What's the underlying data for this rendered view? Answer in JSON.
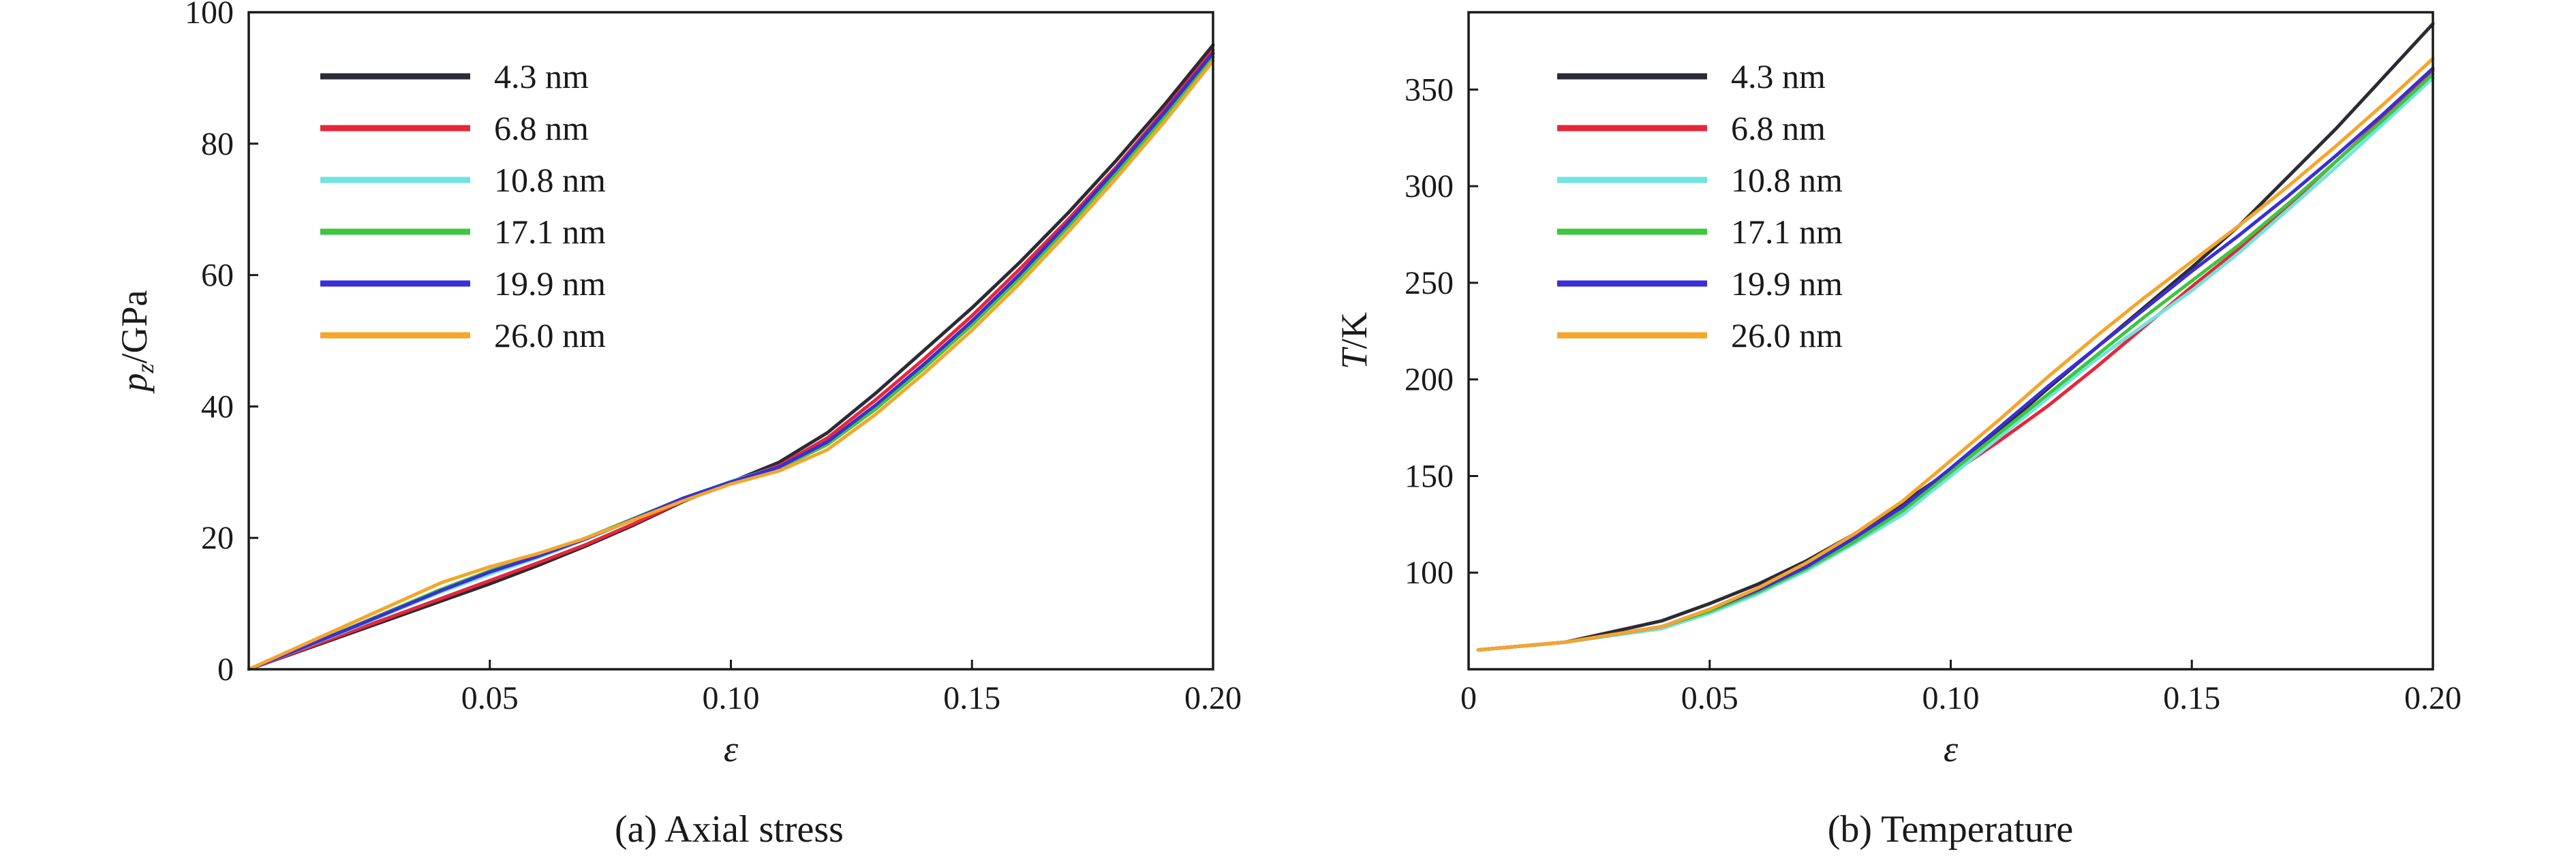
{
  "chart_data": [
    {
      "type": "line",
      "caption": "(a) Axial stress",
      "xlabel": "ε",
      "ylabel_main": "p",
      "ylabel_sub": "z",
      "ylabel_tail": "/GPa",
      "xlim": [
        0,
        0.2
      ],
      "ylim": [
        0,
        100
      ],
      "x_ticks": [
        0.05,
        0.1,
        0.15,
        0.2
      ],
      "x_tick_labels": [
        "0.05",
        "0.10",
        "0.15",
        "0.20"
      ],
      "y_ticks": [
        0,
        20,
        40,
        60,
        80,
        100
      ],
      "y_tick_labels": [
        "0",
        "20",
        "40",
        "60",
        "80",
        "100"
      ],
      "legend_position": "top-left",
      "series": [
        {
          "name": "4.3 nm",
          "color": "#2b2b35",
          "x": [
            0,
            0.02,
            0.04,
            0.05,
            0.06,
            0.07,
            0.08,
            0.09,
            0.1,
            0.11,
            0.12,
            0.13,
            0.14,
            0.15,
            0.16,
            0.17,
            0.18,
            0.19,
            0.2
          ],
          "y": [
            0,
            5.2,
            10.4,
            13.0,
            15.8,
            18.8,
            22.0,
            25.5,
            28.5,
            31.5,
            36.0,
            42.0,
            48.5,
            55.0,
            62.0,
            69.5,
            77.5,
            86.0,
            95.0
          ]
        },
        {
          "name": "6.8 nm",
          "color": "#e8263a",
          "x": [
            0,
            0.02,
            0.04,
            0.05,
            0.06,
            0.07,
            0.08,
            0.09,
            0.1,
            0.11,
            0.12,
            0.13,
            0.14,
            0.15,
            0.16,
            0.17,
            0.18,
            0.19,
            0.2
          ],
          "y": [
            0,
            5.4,
            10.8,
            13.5,
            16.2,
            19.0,
            22.2,
            25.6,
            28.4,
            31.0,
            35.2,
            41.0,
            47.2,
            53.8,
            61.0,
            68.5,
            76.5,
            85.2,
            94.2
          ]
        },
        {
          "name": "10.8 nm",
          "color": "#72e2e2",
          "x": [
            0,
            0.02,
            0.04,
            0.05,
            0.06,
            0.07,
            0.08,
            0.09,
            0.1,
            0.11,
            0.12,
            0.13,
            0.14,
            0.15,
            0.16,
            0.17,
            0.18,
            0.19,
            0.2
          ],
          "y": [
            0,
            5.8,
            11.8,
            14.5,
            17.0,
            19.8,
            22.8,
            26.0,
            28.6,
            30.8,
            34.5,
            40.0,
            46.2,
            52.8,
            60.0,
            67.8,
            76.0,
            84.6,
            93.6
          ]
        },
        {
          "name": "17.1 nm",
          "color": "#3ec63e",
          "x": [
            0,
            0.02,
            0.04,
            0.05,
            0.06,
            0.07,
            0.08,
            0.09,
            0.1,
            0.11,
            0.12,
            0.13,
            0.14,
            0.15,
            0.16,
            0.17,
            0.18,
            0.19,
            0.2
          ],
          "y": [
            0,
            6.0,
            12.2,
            15.0,
            17.4,
            20.0,
            23.0,
            26.0,
            28.5,
            30.6,
            34.2,
            39.6,
            45.8,
            52.4,
            59.6,
            67.4,
            75.6,
            84.2,
            93.2
          ]
        },
        {
          "name": "19.9 nm",
          "color": "#3a2ed6",
          "x": [
            0,
            0.02,
            0.04,
            0.05,
            0.06,
            0.07,
            0.08,
            0.09,
            0.1,
            0.11,
            0.12,
            0.13,
            0.14,
            0.15,
            0.16,
            0.17,
            0.18,
            0.19,
            0.2
          ],
          "y": [
            0,
            5.9,
            12.0,
            14.8,
            17.2,
            19.9,
            22.9,
            26.0,
            28.5,
            30.8,
            34.6,
            40.2,
            46.4,
            53.0,
            60.2,
            68.0,
            76.2,
            84.8,
            93.8
          ]
        },
        {
          "name": "26.0 nm",
          "color": "#f5a52a",
          "x": [
            0,
            0.02,
            0.04,
            0.05,
            0.06,
            0.07,
            0.08,
            0.09,
            0.1,
            0.11,
            0.12,
            0.13,
            0.14,
            0.15,
            0.16,
            0.17,
            0.18,
            0.19,
            0.2
          ],
          "y": [
            0,
            6.6,
            13.2,
            15.6,
            17.6,
            20.0,
            22.8,
            25.6,
            28.2,
            30.2,
            33.4,
            38.8,
            45.0,
            51.6,
            58.8,
            66.6,
            74.8,
            83.4,
            92.6
          ]
        }
      ]
    },
    {
      "type": "line",
      "caption": "(b) Temperature",
      "xlabel": "ε",
      "ylabel_main": "T",
      "ylabel_sub": "",
      "ylabel_tail": "/K",
      "xlim": [
        0,
        0.2
      ],
      "ylim": [
        50,
        390
      ],
      "x_ticks": [
        0,
        0.05,
        0.1,
        0.15,
        0.2
      ],
      "x_tick_labels": [
        "0",
        "0.05",
        "0.10",
        "0.15",
        "0.20"
      ],
      "y_ticks": [
        100,
        150,
        200,
        250,
        300,
        350
      ],
      "y_tick_labels": [
        "100",
        "150",
        "200",
        "250",
        "300",
        "350"
      ],
      "legend_position": "top-left",
      "series": [
        {
          "name": "4.3 nm",
          "color": "#2b2b35",
          "x": [
            0.002,
            0.02,
            0.04,
            0.05,
            0.06,
            0.07,
            0.08,
            0.09,
            0.1,
            0.11,
            0.12,
            0.13,
            0.14,
            0.15,
            0.16,
            0.17,
            0.18,
            0.19,
            0.2
          ],
          "y": [
            60,
            64,
            75,
            84,
            94,
            106,
            120,
            136,
            153,
            173,
            195,
            216,
            237,
            258,
            280,
            305,
            330,
            357,
            384
          ]
        },
        {
          "name": "6.8 nm",
          "color": "#e8263a",
          "x": [
            0.002,
            0.02,
            0.04,
            0.05,
            0.06,
            0.07,
            0.08,
            0.09,
            0.1,
            0.11,
            0.12,
            0.13,
            0.14,
            0.15,
            0.16,
            0.17,
            0.18,
            0.19,
            0.2
          ],
          "y": [
            60,
            64,
            72,
            80,
            90,
            102,
            116,
            131,
            151,
            168,
            186,
            206,
            227,
            248,
            268,
            290,
            313,
            336,
            360
          ]
        },
        {
          "name": "10.8 nm",
          "color": "#72e2e2",
          "x": [
            0.002,
            0.02,
            0.04,
            0.05,
            0.06,
            0.07,
            0.08,
            0.09,
            0.1,
            0.11,
            0.12,
            0.13,
            0.14,
            0.15,
            0.16,
            0.17,
            0.18,
            0.19,
            0.2
          ],
          "y": [
            60,
            64,
            71,
            79,
            89,
            101,
            115,
            130,
            150,
            170,
            190,
            210,
            228,
            246,
            266,
            288,
            310,
            333,
            356
          ]
        },
        {
          "name": "17.1 nm",
          "color": "#3ec63e",
          "x": [
            0.002,
            0.02,
            0.04,
            0.05,
            0.06,
            0.07,
            0.08,
            0.09,
            0.1,
            0.11,
            0.12,
            0.13,
            0.14,
            0.15,
            0.16,
            0.17,
            0.18,
            0.19,
            0.2
          ],
          "y": [
            60,
            64,
            72,
            80,
            90,
            102,
            116,
            132,
            152,
            172,
            192,
            212,
            232,
            251,
            270,
            291,
            313,
            335,
            358
          ]
        },
        {
          "name": "19.9 nm",
          "color": "#3a2ed6",
          "x": [
            0.002,
            0.02,
            0.04,
            0.05,
            0.06,
            0.07,
            0.08,
            0.09,
            0.1,
            0.11,
            0.12,
            0.13,
            0.14,
            0.15,
            0.16,
            0.17,
            0.18,
            0.19,
            0.2
          ],
          "y": [
            60,
            64,
            72,
            81,
            91,
            103,
            118,
            134,
            154,
            175,
            196,
            216,
            236,
            256,
            275,
            295,
            316,
            338,
            361
          ]
        },
        {
          "name": "26.0 nm",
          "color": "#f5a52a",
          "x": [
            0.002,
            0.02,
            0.04,
            0.05,
            0.06,
            0.07,
            0.08,
            0.09,
            0.1,
            0.11,
            0.12,
            0.13,
            0.14,
            0.15,
            0.16,
            0.17,
            0.18,
            0.19,
            0.2
          ],
          "y": [
            60,
            64,
            72,
            81,
            92,
            105,
            120,
            137,
            158,
            179,
            201,
            222,
            242,
            261,
            280,
            300,
            321,
            343,
            366
          ]
        }
      ]
    }
  ]
}
